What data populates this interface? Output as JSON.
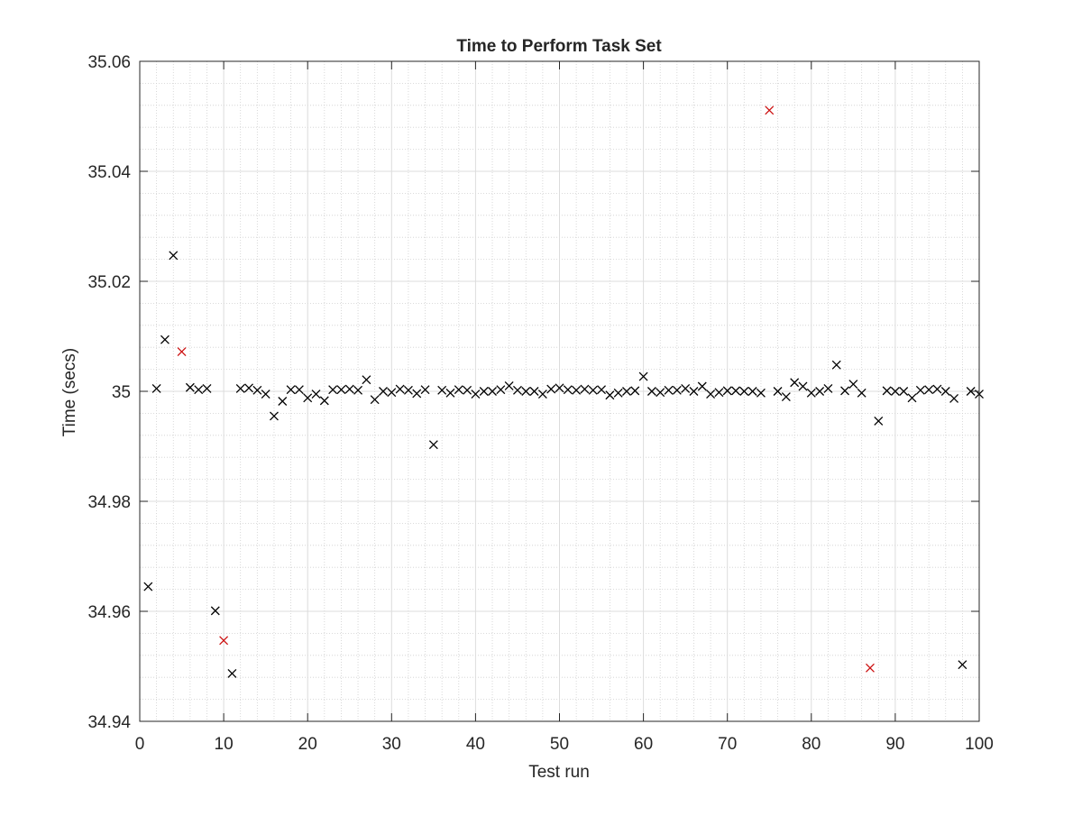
{
  "chart_data": {
    "type": "scatter",
    "title": "Time to Perform Task Set",
    "xlabel": "Test run",
    "ylabel": "Time (secs)",
    "xlim": [
      0,
      100
    ],
    "ylim": [
      34.94,
      35.06
    ],
    "x_ticks": [
      0,
      10,
      20,
      30,
      40,
      50,
      60,
      70,
      80,
      90,
      100
    ],
    "y_ticks": [
      34.94,
      34.96,
      34.98,
      35,
      35.02,
      35.04,
      35.06
    ],
    "x_tick_labels": [
      "0",
      "10",
      "20",
      "30",
      "40",
      "50",
      "60",
      "70",
      "80",
      "90",
      "100"
    ],
    "y_tick_labels": [
      "34.94",
      "34.96",
      "34.98",
      "35",
      "35.02",
      "35.04",
      "35.06"
    ],
    "grid": "major and minor",
    "marker": "x",
    "colors": {
      "normal": "#000000",
      "highlight": "#cc1111"
    },
    "series": [
      {
        "color": "#000000",
        "points": [
          [
            1,
            34.9645
          ],
          [
            2,
            35.0005
          ],
          [
            3,
            35.0094
          ],
          [
            4,
            35.0247
          ],
          [
            6,
            35.0007
          ],
          [
            7,
            35.0003
          ],
          [
            8,
            35.0005
          ],
          [
            9,
            34.9601
          ],
          [
            11,
            34.9487
          ],
          [
            12,
            35.0005
          ],
          [
            13,
            35.0006
          ],
          [
            14,
            35.0002
          ],
          [
            15,
            34.9995
          ],
          [
            16,
            34.9955
          ],
          [
            17,
            34.9982
          ],
          [
            18,
            35.0003
          ],
          [
            19,
            35.0003
          ],
          [
            20,
            34.9988
          ],
          [
            21,
            34.9995
          ],
          [
            22,
            34.9983
          ],
          [
            23,
            35.0003
          ],
          [
            24,
            35.0003
          ],
          [
            25,
            35.0004
          ],
          [
            26,
            35.0002
          ],
          [
            27,
            35.0021
          ],
          [
            28,
            34.9985
          ],
          [
            29,
            35.0
          ],
          [
            30,
            34.9998
          ],
          [
            31,
            35.0004
          ],
          [
            32,
            35.0002
          ],
          [
            33,
            34.9996
          ],
          [
            34,
            35.0003
          ],
          [
            35,
            34.9903
          ],
          [
            36,
            35.0002
          ],
          [
            37,
            34.9997
          ],
          [
            38,
            35.0003
          ],
          [
            39,
            35.0002
          ],
          [
            40,
            34.9995
          ],
          [
            41,
            35.0
          ],
          [
            42,
            35.0
          ],
          [
            43,
            35.0003
          ],
          [
            44,
            35.001
          ],
          [
            45,
            35.0002
          ],
          [
            46,
            35.0
          ],
          [
            47,
            35.0
          ],
          [
            48,
            34.9995
          ],
          [
            49,
            35.0004
          ],
          [
            50,
            35.0006
          ],
          [
            51,
            35.0003
          ],
          [
            52,
            35.0002
          ],
          [
            53,
            35.0004
          ],
          [
            54,
            35.0002
          ],
          [
            55,
            35.0003
          ],
          [
            56,
            34.9993
          ],
          [
            57,
            34.9997
          ],
          [
            58,
            35.0
          ],
          [
            59,
            35.0001
          ],
          [
            60,
            35.0027
          ],
          [
            61,
            35.0
          ],
          [
            62,
            34.9998
          ],
          [
            63,
            35.0002
          ],
          [
            64,
            35.0002
          ],
          [
            65,
            35.0005
          ],
          [
            66,
            35.0
          ],
          [
            67,
            35.0009
          ],
          [
            68,
            34.9995
          ],
          [
            69,
            34.9998
          ],
          [
            70,
            35.0001
          ],
          [
            71,
            35.0001
          ],
          [
            72,
            35.0
          ],
          [
            73,
            35.0
          ],
          [
            74,
            34.9997
          ],
          [
            76,
            35.0
          ],
          [
            77,
            34.999
          ],
          [
            78,
            35.0016
          ],
          [
            79,
            35.0009
          ],
          [
            80,
            34.9997
          ],
          [
            81,
            35.0
          ],
          [
            82,
            35.0005
          ],
          [
            83,
            35.0048
          ],
          [
            84,
            35.0001
          ],
          [
            85,
            35.0013
          ],
          [
            86,
            34.9997
          ],
          [
            88,
            34.9946
          ],
          [
            89,
            35.0001
          ],
          [
            90,
            35.0
          ],
          [
            91,
            35.0
          ],
          [
            92,
            34.9988
          ],
          [
            93,
            35.0002
          ],
          [
            94,
            35.0003
          ],
          [
            95,
            35.0004
          ],
          [
            96,
            35.0
          ],
          [
            97,
            34.9987
          ],
          [
            98,
            34.9503
          ],
          [
            99,
            35.0
          ],
          [
            100,
            34.9995
          ]
        ]
      },
      {
        "color": "#cc1111",
        "points": [
          [
            5,
            35.0072
          ],
          [
            10,
            34.9547
          ],
          [
            75,
            35.0511
          ],
          [
            87,
            34.9497
          ]
        ]
      }
    ]
  }
}
